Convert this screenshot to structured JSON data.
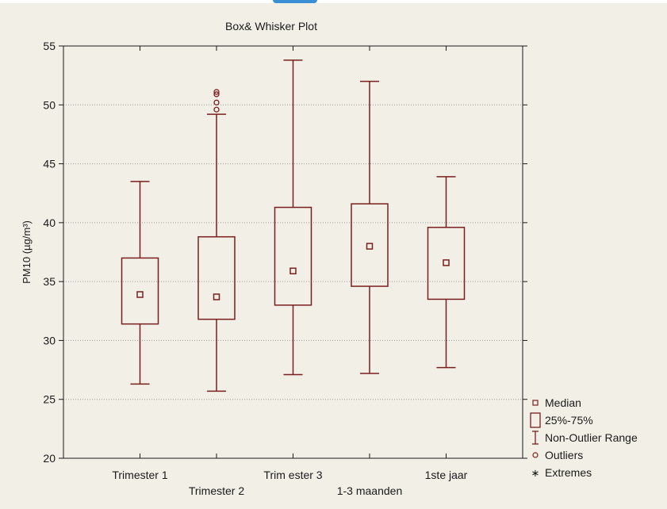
{
  "chart_data": {
    "type": "boxplot",
    "title": "Box& Whisker Plot",
    "ylabel": "PM10 (µg/m³)",
    "xlabel": "",
    "ylim": [
      20,
      55
    ],
    "yticks": [
      20,
      25,
      30,
      35,
      40,
      45,
      50,
      55
    ],
    "grid": true,
    "colors": {
      "mark": "#7a1f1f",
      "grid": "#9a9a9a",
      "background": "#f2efe6"
    },
    "categories": [
      {
        "label": "Trimester 1",
        "label_row": 1,
        "whisker_low": 26.3,
        "q1": 31.4,
        "median": 33.9,
        "q3": 37.0,
        "whisker_high": 43.5,
        "outliers": []
      },
      {
        "label": "Trimester 2",
        "label_row": 2,
        "whisker_low": 25.7,
        "q1": 31.8,
        "median": 33.7,
        "q3": 38.8,
        "whisker_high": 49.2,
        "outliers": [
          49.6,
          50.2,
          50.9,
          51.1
        ]
      },
      {
        "label": "Trim ester 3",
        "label_row": 1,
        "whisker_low": 27.1,
        "q1": 33.0,
        "median": 35.9,
        "q3": 41.3,
        "whisker_high": 53.8,
        "outliers": []
      },
      {
        "label": "1-3 maanden",
        "label_row": 2,
        "whisker_low": 27.2,
        "q1": 34.6,
        "median": 38.0,
        "q3": 41.6,
        "whisker_high": 52.0,
        "outliers": []
      },
      {
        "label": "1ste jaar",
        "label_row": 1,
        "whisker_low": 27.7,
        "q1": 33.5,
        "median": 36.6,
        "q3": 39.6,
        "whisker_high": 43.9,
        "outliers": []
      }
    ],
    "legend": {
      "position": "right",
      "entries": [
        {
          "symbol": "median-square",
          "label": "Median"
        },
        {
          "symbol": "box",
          "label": "25%-75%"
        },
        {
          "symbol": "whisker",
          "label": "Non-Outlier Range"
        },
        {
          "symbol": "circle",
          "label": "Outliers"
        },
        {
          "symbol": "asterisk",
          "label": "Extremes"
        }
      ]
    }
  }
}
